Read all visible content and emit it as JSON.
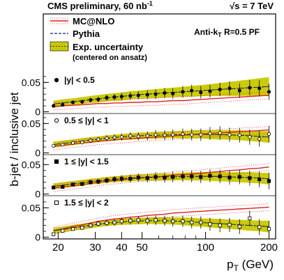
{
  "header": {
    "left": "CMS preliminary, 60 nb",
    "left_sup": "-1",
    "right": "√s = 7 TeV"
  },
  "algo_label": "Anti-k",
  "algo_sub": "T",
  "algo_rest": " R=0.5 PF",
  "legend": [
    {
      "name": "MC@NLO",
      "kind": "line",
      "color": "#e02020"
    },
    {
      "name": "Pythia",
      "kind": "dashed",
      "color": "#1a1a8c"
    },
    {
      "name": "Exp. uncertainty",
      "kind": "band",
      "color": "#c8c800"
    }
  ],
  "legend_note": "(centered on ansatz)",
  "chart_data": {
    "type": "scatter",
    "xscale": "log",
    "xlim": [
      17,
      215
    ],
    "xticks": [
      20,
      30,
      40,
      50,
      100,
      200
    ],
    "xticklabels": [
      "20",
      "30",
      "40",
      "50",
      "100",
      "200"
    ],
    "xlabel": "p",
    "xlabel_sub": "T",
    "xlabel_unit": " (GeV)",
    "ylabel": "b-jet / inclusive jet",
    "ytick_values": [
      0,
      0.05
    ],
    "ytick_labels": [
      "0",
      "0.05"
    ],
    "x": [
      19,
      21,
      23.5,
      26,
      28.5,
      31,
      34,
      37,
      40,
      44,
      48,
      53,
      58,
      64,
      70,
      78,
      86,
      95,
      105,
      117,
      130,
      145,
      162,
      180,
      200
    ],
    "panels": [
      {
        "label": "|y| < 0.5",
        "marker": "filled-circle",
        "ylim": [
          -0.003,
          0.068
        ],
        "data": [
          0.01,
          0.012,
          0.016,
          0.017,
          0.02,
          0.021,
          0.024,
          0.025,
          0.026,
          0.027,
          0.028,
          0.029,
          0.03,
          0.032,
          0.031,
          0.034,
          0.036,
          0.033,
          0.035,
          0.038,
          0.04,
          0.036,
          0.041,
          0.04,
          0.034
        ],
        "ansatz": [
          0.013,
          0.015,
          0.017,
          0.019,
          0.021,
          0.022,
          0.024,
          0.025,
          0.026,
          0.028,
          0.029,
          0.03,
          0.031,
          0.032,
          0.033,
          0.034,
          0.035,
          0.036,
          0.037,
          0.038,
          0.039,
          0.04,
          0.041,
          0.042,
          0.043
        ],
        "band_halfwidth": [
          0.006,
          0.006,
          0.006,
          0.006,
          0.006,
          0.0065,
          0.0065,
          0.0065,
          0.007,
          0.007,
          0.007,
          0.0075,
          0.0075,
          0.008,
          0.008,
          0.0085,
          0.009,
          0.0095,
          0.01,
          0.011,
          0.012,
          0.013,
          0.014,
          0.015,
          0.016
        ],
        "mcatnlo": [
          0.009,
          0.01,
          0.011,
          0.012,
          0.013,
          0.014,
          0.014,
          0.015,
          0.015,
          0.016,
          0.016,
          0.017,
          0.017,
          0.018,
          0.019,
          0.019,
          0.02,
          0.021,
          0.022,
          0.023,
          0.024,
          0.025,
          0.026,
          0.027,
          0.028
        ]
      },
      {
        "label": "0.5 ≤ |y| < 1",
        "marker": "open-circle",
        "ylim": [
          -0.003,
          0.068
        ],
        "data": [
          0.012,
          0.014,
          0.017,
          0.018,
          0.021,
          0.023,
          0.025,
          0.026,
          0.027,
          0.029,
          0.028,
          0.029,
          0.031,
          0.03,
          0.031,
          0.032,
          0.031,
          0.031,
          0.033,
          0.034,
          0.031,
          0.03,
          0.027,
          0.024,
          0.032
        ],
        "ansatz": [
          0.014,
          0.016,
          0.018,
          0.02,
          0.022,
          0.023,
          0.025,
          0.026,
          0.027,
          0.028,
          0.029,
          0.0295,
          0.03,
          0.0305,
          0.031,
          0.031,
          0.0315,
          0.0315,
          0.031,
          0.031,
          0.0305,
          0.03,
          0.029,
          0.028,
          0.027
        ],
        "band_halfwidth": [
          0.005,
          0.005,
          0.005,
          0.005,
          0.005,
          0.005,
          0.005,
          0.005,
          0.005,
          0.0055,
          0.0055,
          0.0055,
          0.006,
          0.006,
          0.006,
          0.0065,
          0.007,
          0.007,
          0.0075,
          0.008,
          0.008,
          0.0085,
          0.009,
          0.009,
          0.01
        ],
        "mcatnlo": [
          0.011,
          0.013,
          0.015,
          0.017,
          0.018,
          0.02,
          0.021,
          0.022,
          0.023,
          0.024,
          0.025,
          0.026,
          0.027,
          0.028,
          0.029,
          0.03,
          0.031,
          0.032,
          0.033,
          0.034,
          0.035,
          0.036,
          0.037,
          0.038,
          0.039
        ]
      },
      {
        "label": "1 ≤ |y| < 1.5",
        "marker": "filled-square",
        "ylim": [
          -0.003,
          0.068
        ],
        "data": [
          0.011,
          0.012,
          0.016,
          0.017,
          0.02,
          0.021,
          0.023,
          0.025,
          0.026,
          0.026,
          0.028,
          0.027,
          0.029,
          0.028,
          0.029,
          0.03,
          0.03,
          0.029,
          0.031,
          0.03,
          0.028,
          0.029,
          0.027,
          0.025,
          0.022
        ],
        "ansatz": [
          0.013,
          0.015,
          0.017,
          0.019,
          0.021,
          0.022,
          0.024,
          0.025,
          0.026,
          0.027,
          0.028,
          0.028,
          0.029,
          0.029,
          0.029,
          0.03,
          0.03,
          0.03,
          0.03,
          0.0295,
          0.029,
          0.0285,
          0.028,
          0.027,
          0.026
        ],
        "band_halfwidth": [
          0.005,
          0.005,
          0.005,
          0.005,
          0.005,
          0.005,
          0.005,
          0.005,
          0.005,
          0.0055,
          0.0055,
          0.0055,
          0.006,
          0.006,
          0.006,
          0.0065,
          0.007,
          0.007,
          0.0075,
          0.008,
          0.008,
          0.0085,
          0.009,
          0.009,
          0.01
        ],
        "mcatnlo": [
          0.01,
          0.012,
          0.014,
          0.016,
          0.018,
          0.02,
          0.022,
          0.023,
          0.024,
          0.026,
          0.027,
          0.028,
          0.029,
          0.03,
          0.032,
          0.033,
          0.034,
          0.035,
          0.037,
          0.038,
          0.04,
          0.041,
          0.043,
          0.044,
          0.046
        ]
      },
      {
        "label": "1.5 ≤ |y| < 2",
        "marker": "open-square",
        "ylim": [
          -0.003,
          0.068
        ],
        "data": [
          0.005,
          0.011,
          0.014,
          0.016,
          0.02,
          0.023,
          0.024,
          0.025,
          0.027,
          0.028,
          0.029,
          0.028,
          0.029,
          0.028,
          0.027,
          0.027,
          0.025,
          0.025,
          0.022,
          0.02,
          0.021,
          0.018,
          0.032,
          0.017,
          0.014
        ],
        "ansatz": [
          0.011,
          0.013,
          0.016,
          0.018,
          0.02,
          0.022,
          0.024,
          0.025,
          0.026,
          0.027,
          0.0275,
          0.028,
          0.028,
          0.028,
          0.0275,
          0.027,
          0.026,
          0.025,
          0.024,
          0.023,
          0.022,
          0.021,
          0.02,
          0.019,
          0.018
        ],
        "band_halfwidth": [
          0.005,
          0.005,
          0.005,
          0.005,
          0.005,
          0.005,
          0.005,
          0.005,
          0.005,
          0.0055,
          0.0055,
          0.0055,
          0.006,
          0.006,
          0.006,
          0.0065,
          0.007,
          0.007,
          0.0075,
          0.008,
          0.008,
          0.0085,
          0.009,
          0.009,
          0.01
        ],
        "mcatnlo": [
          0.011,
          0.014,
          0.018,
          0.021,
          0.024,
          0.027,
          0.029,
          0.031,
          0.032,
          0.034,
          0.035,
          0.037,
          0.038,
          0.039,
          0.041,
          0.042,
          0.043,
          0.044,
          0.045,
          0.046,
          0.047,
          0.048,
          0.049,
          0.05,
          0.051
        ]
      }
    ]
  }
}
